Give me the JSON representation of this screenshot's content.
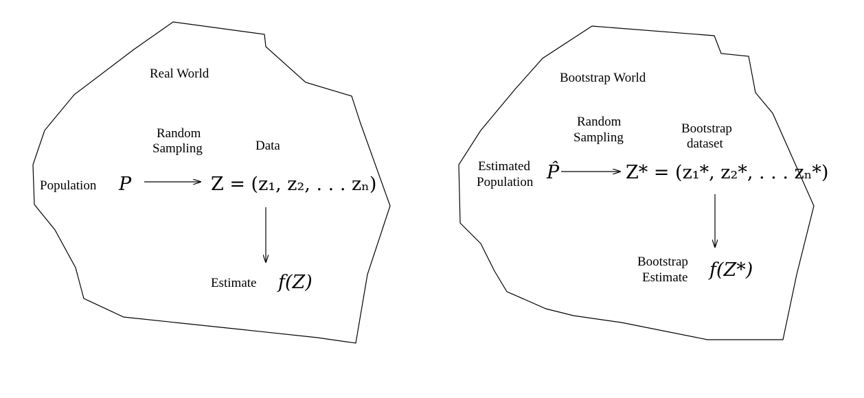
{
  "real_world": {
    "title": "Real World",
    "sampling_line1": "Random",
    "sampling_line2": "Sampling",
    "data_label": "Data",
    "population_label": "Population",
    "population_symbol": "P",
    "dataset_expr": "Z = (z₁, z₂, . . . zₙ)",
    "estimate_label": "Estimate",
    "estimate_expr": "f(Z)"
  },
  "bootstrap_world": {
    "title": "Bootstrap World",
    "sampling_line1": "Random",
    "sampling_line2": "Sampling",
    "data_line1": "Bootstrap",
    "data_line2": "dataset",
    "population_line1": "Estimated",
    "population_line2": "Population",
    "population_symbol": "P̂",
    "dataset_expr": "Z* = (z₁*, z₂*, . . . zₙ*)",
    "estimate_line1": "Bootstrap",
    "estimate_line2": "Estimate",
    "estimate_expr": "f(Z*)"
  }
}
